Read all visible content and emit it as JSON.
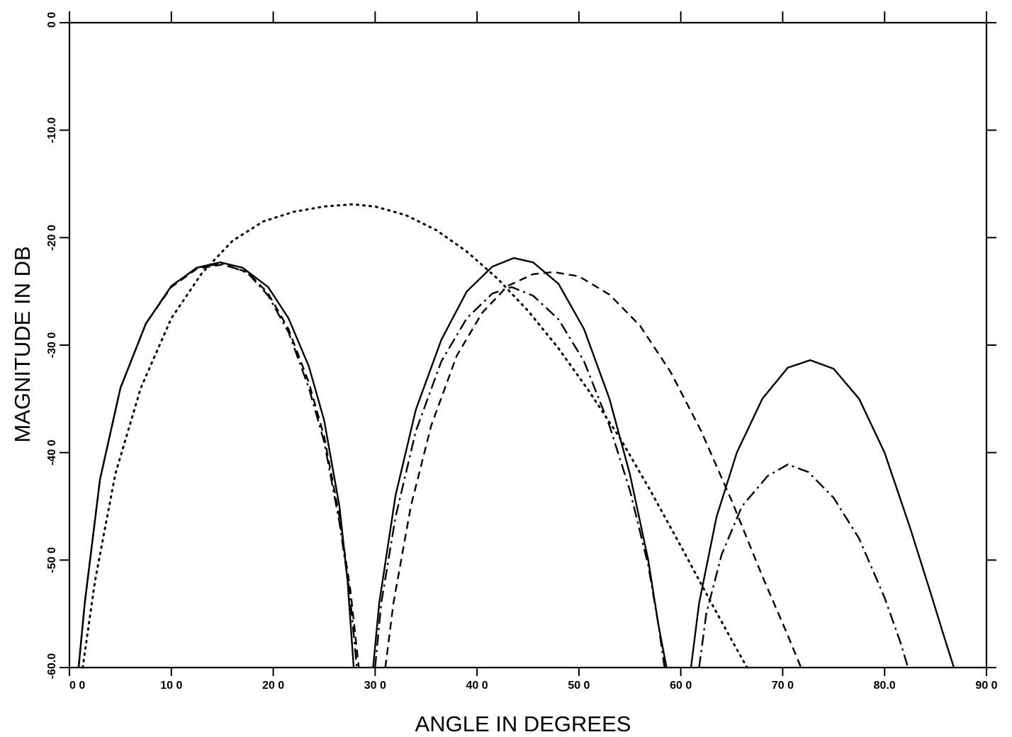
{
  "chart_data": {
    "type": "line",
    "title": "",
    "xlabel": "ANGLE IN DEGREES",
    "ylabel": "MAGNITUDE IN DB",
    "xlim": [
      0,
      90
    ],
    "ylim": [
      -60,
      0
    ],
    "grid": false,
    "xticks": [
      0,
      10,
      20,
      30,
      40,
      50,
      60,
      70,
      80,
      90
    ],
    "xtick_labels": [
      "0 0",
      "10 0",
      "20 0",
      "30 0",
      "40 0",
      "50 0",
      "60 0",
      "70 0",
      "80.0",
      "90 0"
    ],
    "yticks": [
      0,
      -10,
      -20,
      -30,
      -40,
      -50,
      -60
    ],
    "ytick_labels": [
      "0 0",
      "-10.0",
      "-20 0",
      "-30 0",
      "-40 0",
      "-50 0",
      "-60.0"
    ],
    "series": [
      {
        "style": "solid",
        "segments": [
          [
            [
              0.9,
              -60
            ],
            [
              1.5,
              -54
            ],
            [
              3,
              -42.5
            ],
            [
              5,
              -34
            ],
            [
              7.5,
              -28
            ],
            [
              10,
              -24.5
            ],
            [
              12.5,
              -22.8
            ],
            [
              14.8,
              -22.3
            ],
            [
              17,
              -22.8
            ],
            [
              19.5,
              -24.6
            ],
            [
              21.5,
              -27.5
            ],
            [
              23.5,
              -32
            ],
            [
              25,
              -37
            ],
            [
              26.5,
              -45
            ],
            [
              27.3,
              -52
            ],
            [
              27.9,
              -60
            ]
          ],
          [
            [
              29.8,
              -60
            ],
            [
              30.4,
              -54
            ],
            [
              32,
              -44
            ],
            [
              34,
              -36
            ],
            [
              36.5,
              -29.5
            ],
            [
              39,
              -25
            ],
            [
              41.5,
              -22.7
            ],
            [
              43.6,
              -21.9
            ],
            [
              45.5,
              -22.3
            ],
            [
              48,
              -24.3
            ],
            [
              50.5,
              -28.5
            ],
            [
              53,
              -35
            ],
            [
              55,
              -42
            ],
            [
              56.8,
              -50
            ],
            [
              57.8,
              -56
            ],
            [
              58.6,
              -60
            ]
          ],
          [
            [
              61,
              -60
            ],
            [
              61.8,
              -54
            ],
            [
              63.5,
              -46
            ],
            [
              65.5,
              -40
            ],
            [
              68,
              -35
            ],
            [
              70.5,
              -32.1
            ],
            [
              72.7,
              -31.4
            ],
            [
              75,
              -32.2
            ],
            [
              77.5,
              -35
            ],
            [
              80,
              -40
            ],
            [
              82.5,
              -47
            ],
            [
              84.5,
              -53
            ],
            [
              85.8,
              -57
            ],
            [
              86.8,
              -60
            ]
          ]
        ]
      },
      {
        "style": "dotted",
        "segments": [
          [
            [
              1.3,
              -60
            ],
            [
              2.5,
              -52
            ],
            [
              4.5,
              -42
            ],
            [
              7,
              -34
            ],
            [
              10,
              -27.5
            ],
            [
              13,
              -23.3
            ],
            [
              16,
              -20.3
            ],
            [
              19,
              -18.5
            ],
            [
              22,
              -17.6
            ],
            [
              25,
              -17.1
            ],
            [
              27.8,
              -16.9
            ],
            [
              30,
              -17.1
            ],
            [
              33,
              -17.9
            ],
            [
              36,
              -19.3
            ],
            [
              39,
              -21.3
            ],
            [
              42,
              -23.8
            ],
            [
              45,
              -26.8
            ],
            [
              48,
              -30.3
            ],
            [
              51,
              -34.3
            ],
            [
              54,
              -38.6
            ],
            [
              57,
              -43.5
            ],
            [
              60,
              -48.7
            ],
            [
              63,
              -54
            ],
            [
              65.5,
              -58.3
            ],
            [
              66.5,
              -60
            ]
          ]
        ]
      },
      {
        "style": "dashed",
        "segments": [
          [
            [
              0.9,
              -60
            ],
            [
              1.5,
              -54
            ],
            [
              3,
              -42.5
            ],
            [
              5,
              -34
            ],
            [
              7.5,
              -28
            ],
            [
              10,
              -24.6
            ],
            [
              12.5,
              -22.9
            ],
            [
              15,
              -22.5
            ],
            [
              17.5,
              -23.2
            ],
            [
              19.5,
              -25.2
            ],
            [
              21.5,
              -28.5
            ],
            [
              23.5,
              -33.5
            ],
            [
              25,
              -38.5
            ],
            [
              26.5,
              -46
            ],
            [
              27.6,
              -53
            ],
            [
              28.4,
              -60
            ]
          ],
          [
            [
              31,
              -60
            ],
            [
              31.8,
              -54
            ],
            [
              33.5,
              -45
            ],
            [
              35.5,
              -37.5
            ],
            [
              38,
              -31
            ],
            [
              40.5,
              -27
            ],
            [
              43,
              -24.5
            ],
            [
              45.5,
              -23.4
            ],
            [
              47.5,
              -23.2
            ],
            [
              50,
              -23.6
            ],
            [
              53,
              -25.3
            ],
            [
              56,
              -28.2
            ],
            [
              59,
              -32.5
            ],
            [
              62,
              -38
            ],
            [
              65,
              -44.5
            ],
            [
              68,
              -51.5
            ],
            [
              70.5,
              -57
            ],
            [
              71.8,
              -60
            ]
          ]
        ]
      },
      {
        "style": "dashdot",
        "segments": [
          [
            [
              0.9,
              -60
            ],
            [
              1.5,
              -54
            ],
            [
              3,
              -42.5
            ],
            [
              5,
              -34
            ],
            [
              7.5,
              -28
            ],
            [
              10,
              -24.5
            ],
            [
              12.5,
              -22.8
            ],
            [
              15,
              -22.4
            ],
            [
              17.5,
              -23.3
            ],
            [
              19.5,
              -25.4
            ],
            [
              21.5,
              -28.8
            ],
            [
              23.5,
              -34
            ],
            [
              25,
              -39
            ],
            [
              26.5,
              -46.5
            ],
            [
              27.5,
              -53
            ],
            [
              28.2,
              -60
            ]
          ],
          [
            [
              30,
              -60
            ],
            [
              30.6,
              -54
            ],
            [
              32,
              -46
            ],
            [
              34,
              -38
            ],
            [
              36.5,
              -31.5
            ],
            [
              39,
              -27.5
            ],
            [
              41.5,
              -25.2
            ],
            [
              43.4,
              -24.6
            ],
            [
              45.5,
              -25.4
            ],
            [
              48,
              -27.6
            ],
            [
              50.5,
              -31.5
            ],
            [
              53,
              -37.5
            ],
            [
              55,
              -43.5
            ],
            [
              56.8,
              -50.5
            ],
            [
              57.8,
              -56
            ],
            [
              58.4,
              -60
            ]
          ],
          [
            [
              61.8,
              -60
            ],
            [
              62.5,
              -55
            ],
            [
              64,
              -49.5
            ],
            [
              66,
              -45
            ],
            [
              68.5,
              -42.2
            ],
            [
              70.5,
              -41.1
            ],
            [
              72.5,
              -41.8
            ],
            [
              75,
              -44.2
            ],
            [
              77.5,
              -48
            ],
            [
              80,
              -53.5
            ],
            [
              81.5,
              -57.5
            ],
            [
              82.3,
              -60
            ]
          ]
        ]
      }
    ]
  }
}
